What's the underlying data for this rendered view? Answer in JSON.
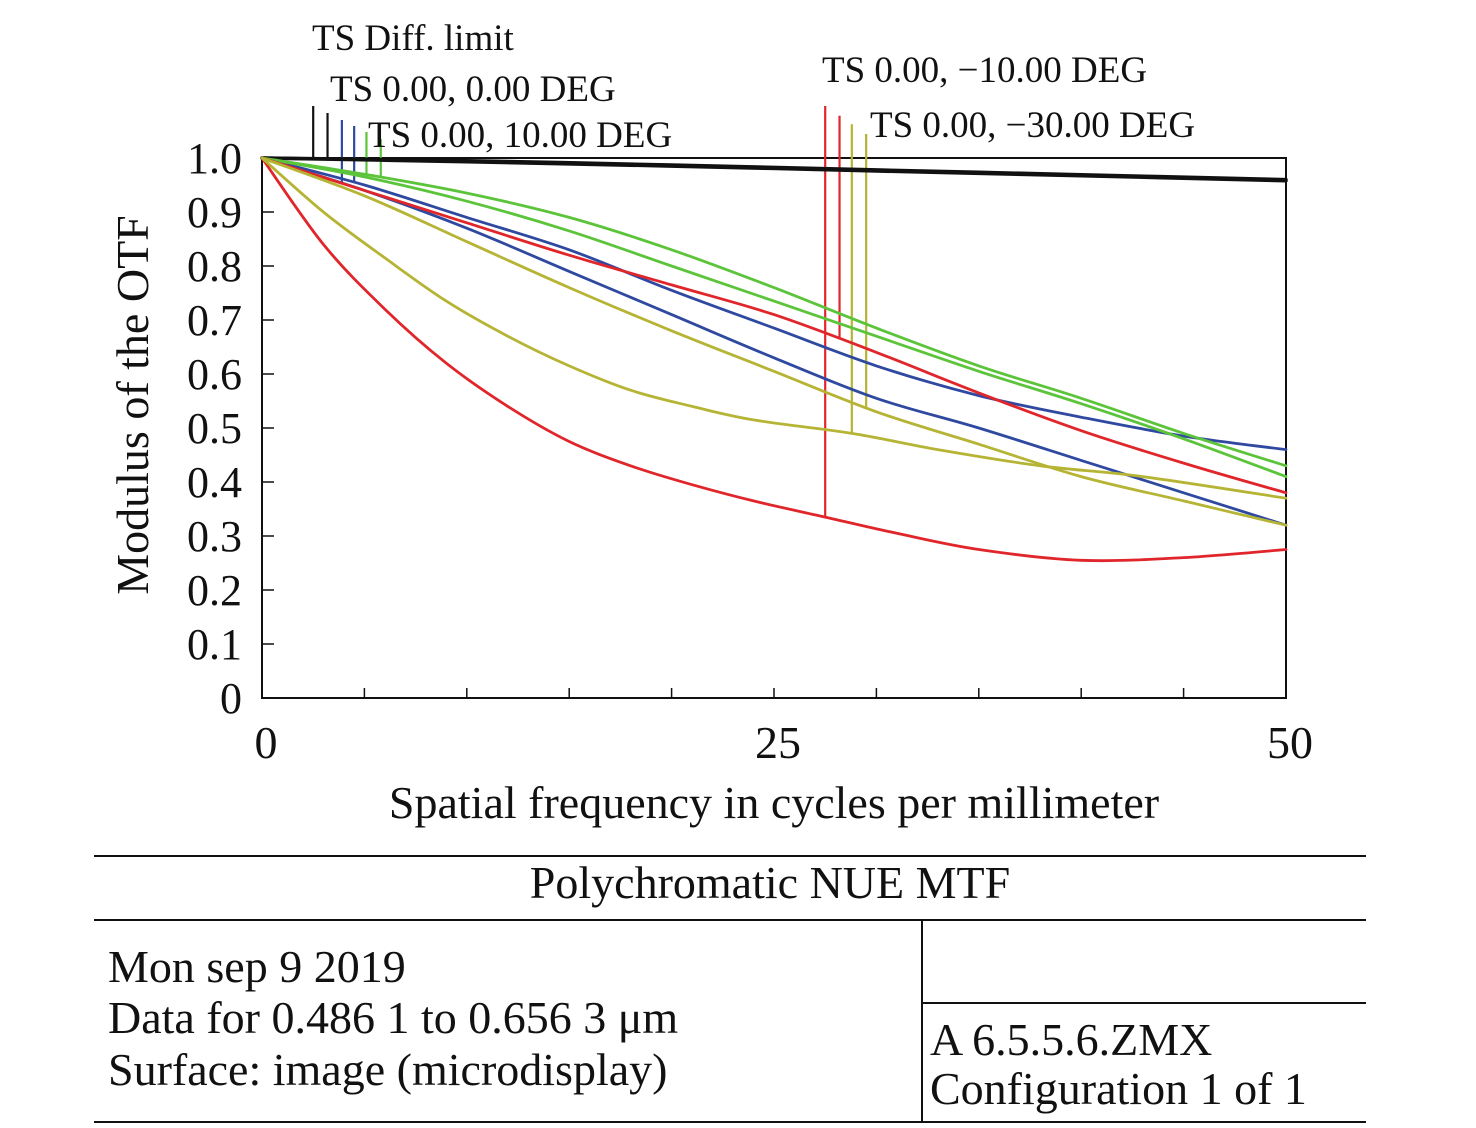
{
  "chart_data": {
    "type": "line",
    "title": "Polychromatic NUE MTF",
    "xlabel": "Spatial frequency in cycles per millimeter",
    "ylabel": "Modulus of the OTF",
    "xlim": [
      0,
      50
    ],
    "ylim": [
      0,
      1.0
    ],
    "xticks": [
      "0",
      "25",
      "50"
    ],
    "yticks": [
      "0",
      "0.1",
      "0.2",
      "0.3",
      "0.4",
      "0.5",
      "0.6",
      "0.7",
      "0.8",
      "0.9",
      "1.0"
    ],
    "grid": false,
    "series": [
      {
        "name": "TS Diff. limit",
        "color": "#111111",
        "marker_x": 2.5,
        "x": [
          0,
          10,
          20,
          30,
          40,
          50
        ],
        "y": [
          1.0,
          0.995,
          0.987,
          0.978,
          0.969,
          0.96
        ]
      },
      {
        "name": "TS Diff. limit",
        "color": "#111111",
        "marker_x": 3.2,
        "x": [
          0,
          10,
          20,
          30,
          40,
          50
        ],
        "y": [
          1.0,
          0.993,
          0.985,
          0.976,
          0.967,
          0.958
        ]
      },
      {
        "name": "TS 0.00, 0.00 DEG",
        "color": "#2f49a0",
        "marker_x": 3.9,
        "x": [
          0,
          5,
          10,
          15,
          20,
          25,
          30,
          35,
          40,
          45,
          50
        ],
        "y": [
          1.0,
          0.94,
          0.87,
          0.79,
          0.71,
          0.63,
          0.555,
          0.5,
          0.44,
          0.38,
          0.32
        ]
      },
      {
        "name": "TS 0.00, 0.00 DEG",
        "color": "#2f49a0",
        "marker_x": 4.5,
        "x": [
          0,
          5,
          10,
          15,
          20,
          25,
          30,
          35,
          40,
          45,
          50
        ],
        "y": [
          1.0,
          0.95,
          0.89,
          0.83,
          0.755,
          0.685,
          0.615,
          0.56,
          0.52,
          0.485,
          0.46
        ]
      },
      {
        "name": "TS 0.00, 10.00 DEG",
        "color": "#5cc43a",
        "marker_x": 5.1,
        "x": [
          0,
          5,
          10,
          15,
          20,
          25,
          30,
          35,
          40,
          45,
          50
        ],
        "y": [
          1.0,
          0.965,
          0.92,
          0.865,
          0.8,
          0.735,
          0.67,
          0.605,
          0.545,
          0.48,
          0.41
        ]
      },
      {
        "name": "TS 0.00, 10.00 DEG",
        "color": "#5cc43a",
        "marker_x": 5.8,
        "x": [
          0,
          5,
          10,
          15,
          20,
          25,
          30,
          35,
          40,
          45,
          50
        ],
        "y": [
          1.0,
          0.97,
          0.935,
          0.89,
          0.83,
          0.76,
          0.685,
          0.615,
          0.555,
          0.49,
          0.43
        ]
      },
      {
        "name": "TS 0.00, -10.00 DEG",
        "color": "#e0262b",
        "marker_x": 27.5,
        "x": [
          0,
          3,
          6,
          9,
          12,
          15,
          18,
          21,
          24,
          27.5,
          31,
          35,
          40,
          45,
          50
        ],
        "y": [
          1.0,
          0.84,
          0.72,
          0.62,
          0.54,
          0.475,
          0.43,
          0.395,
          0.365,
          0.335,
          0.305,
          0.275,
          0.255,
          0.26,
          0.275
        ]
      },
      {
        "name": "TS 0.00, -10.00 DEG",
        "color": "#e0262b",
        "marker_x": 28.2,
        "x": [
          0,
          5,
          10,
          15,
          20,
          25,
          30,
          35,
          40,
          45,
          50
        ],
        "y": [
          1.0,
          0.94,
          0.88,
          0.82,
          0.765,
          0.71,
          0.64,
          0.565,
          0.495,
          0.435,
          0.38
        ]
      },
      {
        "name": "TS 0.00, -30.00 DEG",
        "color": "#b6b435",
        "marker_x": 28.8,
        "x": [
          0,
          3,
          6,
          9,
          12,
          15,
          18,
          21,
          24,
          28.8,
          33,
          38,
          43,
          50
        ],
        "y": [
          1.0,
          0.9,
          0.815,
          0.735,
          0.67,
          0.615,
          0.57,
          0.54,
          0.515,
          0.49,
          0.46,
          0.43,
          0.41,
          0.37
        ]
      },
      {
        "name": "TS 0.00, -30.00 DEG",
        "color": "#b6b435",
        "marker_x": 29.5,
        "x": [
          0,
          5,
          10,
          15,
          20,
          25,
          30,
          35,
          40,
          45,
          50
        ],
        "y": [
          1.0,
          0.93,
          0.845,
          0.76,
          0.68,
          0.605,
          0.53,
          0.47,
          0.41,
          0.365,
          0.32
        ]
      }
    ],
    "legend_labels": [
      "TS Diff. limit",
      "TS 0.00, 0.00 DEG",
      "TS 0.00, 10.00 DEG",
      "TS 0.00, −10.00 DEG",
      "TS 0.00, −30.00 DEG"
    ]
  },
  "info": {
    "title": "Polychromatic NUE MTF",
    "date": "Mon sep 9 2019",
    "data_range": "Data for 0.486 1 to 0.656 3 μm",
    "surface": "Surface: image (microdisplay)",
    "file": "A 6.5.5.6.ZMX",
    "configuration": "Configuration 1 of 1"
  }
}
